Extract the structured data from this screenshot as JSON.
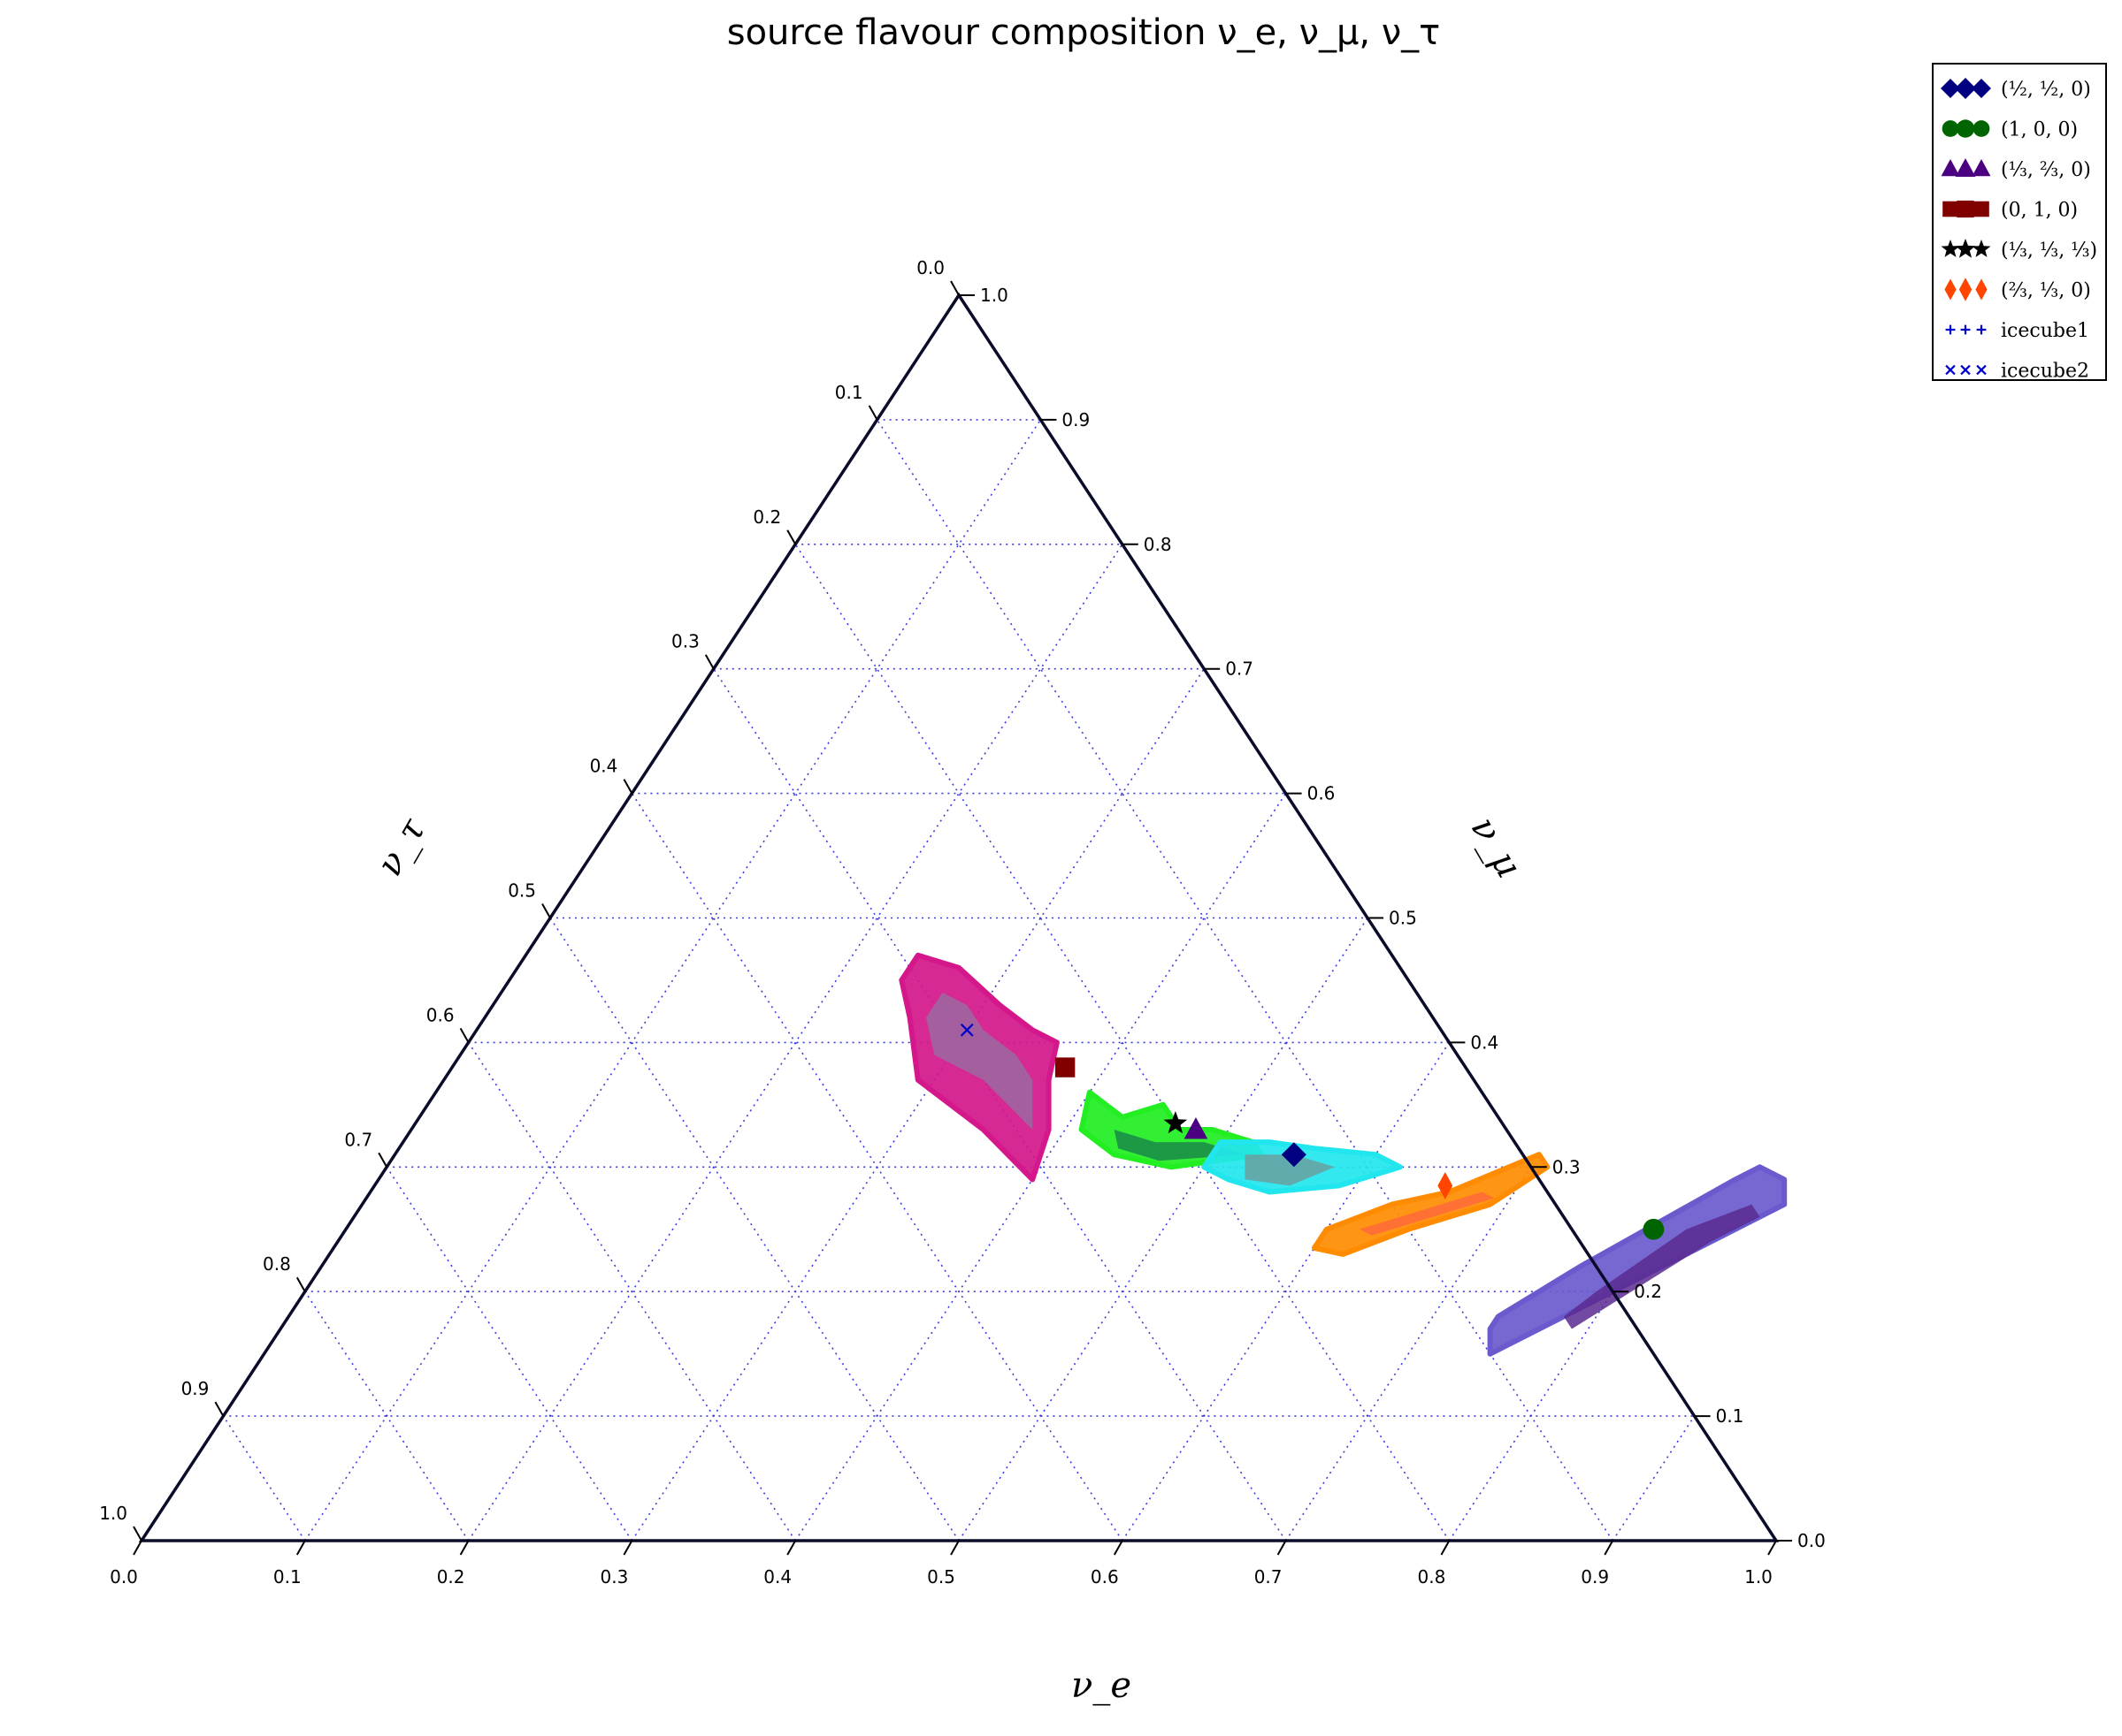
{
  "chart_data": {
    "type": "scatter",
    "subtype": "ternary",
    "title": "source flavour composition ν_e, ν_μ, ν_τ",
    "axes": {
      "bottom": {
        "label": "ν_e",
        "range": [
          0,
          1
        ]
      },
      "right": {
        "label": "ν_μ",
        "range": [
          0,
          1
        ]
      },
      "left": {
        "label": "ν_τ",
        "range": [
          0,
          1
        ]
      }
    },
    "ticks": [
      "0.0",
      "0.1",
      "0.2",
      "0.3",
      "0.4",
      "0.5",
      "0.6",
      "0.7",
      "0.8",
      "0.9",
      "1.0"
    ],
    "grid": true,
    "legend_position": "top-right",
    "colors": {
      "axis": "#0b0b2a",
      "grid": "#3b3bdc",
      "magenta_region": "#d4178a",
      "green_region": "#22ee22",
      "cyan_region": "#22e6ee",
      "orange_region": "#ff8c00",
      "slate_region": "#6a5acd"
    },
    "regions": [
      {
        "name": "magenta",
        "color": "#d4178a",
        "inner": "#9b6aa0",
        "outer": [
          [
            0.24,
            0.47
          ],
          [
            0.27,
            0.46
          ],
          [
            0.31,
            0.43
          ],
          [
            0.34,
            0.41
          ],
          [
            0.36,
            0.4
          ],
          [
            0.37,
            0.37
          ],
          [
            0.39,
            0.33
          ],
          [
            0.4,
            0.29
          ],
          [
            0.35,
            0.33
          ],
          [
            0.29,
            0.37
          ],
          [
            0.26,
            0.42
          ],
          [
            0.24,
            0.45
          ]
        ],
        "inner_poly": [
          [
            0.27,
            0.44
          ],
          [
            0.29,
            0.43
          ],
          [
            0.31,
            0.41
          ],
          [
            0.34,
            0.39
          ],
          [
            0.36,
            0.37
          ],
          [
            0.38,
            0.33
          ],
          [
            0.33,
            0.37
          ],
          [
            0.29,
            0.39
          ],
          [
            0.27,
            0.42
          ]
        ]
      },
      {
        "name": "green",
        "color": "#22ee22",
        "inner": "#1a8a4a",
        "outer": [
          [
            0.4,
            0.36
          ],
          [
            0.43,
            0.34
          ],
          [
            0.45,
            0.35
          ],
          [
            0.47,
            0.33
          ],
          [
            0.49,
            0.33
          ],
          [
            0.52,
            0.32
          ],
          [
            0.53,
            0.31
          ],
          [
            0.48,
            0.3
          ],
          [
            0.44,
            0.31
          ],
          [
            0.41,
            0.33
          ]
        ],
        "inner_poly": [
          [
            0.43,
            0.33
          ],
          [
            0.46,
            0.32
          ],
          [
            0.49,
            0.32
          ],
          [
            0.52,
            0.31
          ],
          [
            0.47,
            0.305
          ],
          [
            0.44,
            0.315
          ]
        ]
      },
      {
        "name": "cyan",
        "color": "#22e6ee",
        "inner": "#6aa0a0",
        "outer": [
          [
            0.5,
            0.32
          ],
          [
            0.53,
            0.32
          ],
          [
            0.56,
            0.315
          ],
          [
            0.6,
            0.31
          ],
          [
            0.62,
            0.3
          ],
          [
            0.59,
            0.285
          ],
          [
            0.55,
            0.28
          ],
          [
            0.52,
            0.29
          ],
          [
            0.5,
            0.3
          ]
        ],
        "inner_poly": [
          [
            0.52,
            0.31
          ],
          [
            0.55,
            0.31
          ],
          [
            0.58,
            0.3
          ],
          [
            0.56,
            0.285
          ],
          [
            0.53,
            0.29
          ]
        ]
      },
      {
        "name": "orange",
        "color": "#ff8c00",
        "inner": "#ff6a3a",
        "outer": [
          [
            0.6,
            0.25
          ],
          [
            0.63,
            0.27
          ],
          [
            0.66,
            0.28
          ],
          [
            0.7,
            0.31
          ],
          [
            0.71,
            0.3
          ],
          [
            0.69,
            0.27
          ],
          [
            0.65,
            0.25
          ],
          [
            0.62,
            0.23
          ],
          [
            0.6,
            0.235
          ]
        ],
        "inner_poly": [
          [
            0.62,
            0.25
          ],
          [
            0.65,
            0.265
          ],
          [
            0.68,
            0.28
          ],
          [
            0.69,
            0.275
          ],
          [
            0.66,
            0.26
          ],
          [
            0.63,
            0.245
          ]
        ]
      },
      {
        "name": "slate",
        "color": "#6a5acd",
        "inner": "#5a2a90",
        "outer": [
          [
            0.74,
            0.17
          ],
          [
            0.75,
            0.15
          ],
          [
            0.87,
            0.27
          ],
          [
            0.86,
            0.29
          ],
          [
            0.84,
            0.3
          ],
          [
            0.83,
            0.29
          ],
          [
            0.77,
            0.22
          ],
          [
            0.74,
            0.18
          ]
        ],
        "inner_poly": [
          [
            0.78,
            0.18
          ],
          [
            0.79,
            0.17
          ],
          [
            0.84,
            0.24
          ],
          [
            0.86,
            0.26
          ],
          [
            0.85,
            0.27
          ],
          [
            0.82,
            0.25
          ],
          [
            0.79,
            0.2
          ]
        ]
      }
    ],
    "points": [
      {
        "series": "(½,½,0)",
        "marker": "diamond",
        "color": "#000080",
        "e": 0.55,
        "mu": 0.31
      },
      {
        "series": "(1,0,0)",
        "marker": "circle",
        "color": "#006400",
        "e": 0.8,
        "mu": 0.25
      },
      {
        "series": "(⅓,⅔,0)",
        "marker": "triangle",
        "color": "#4b0082",
        "e": 0.48,
        "mu": 0.33
      },
      {
        "series": "(0,1,0)",
        "marker": "square",
        "color": "#800000",
        "e": 0.375,
        "mu": 0.38
      },
      {
        "series": "(⅓,⅓,⅓)",
        "marker": "star",
        "color": "#000000",
        "e": 0.465,
        "mu": 0.335
      },
      {
        "series": "(⅔,⅓,0)",
        "marker": "thin_diamond",
        "color": "#ff4500",
        "e": 0.655,
        "mu": 0.285
      },
      {
        "series": "icecube2",
        "marker": "x",
        "color": "#0000cd",
        "e": 0.3,
        "mu": 0.41
      }
    ],
    "legend": [
      {
        "label": "(½, ½, 0)",
        "marker": "diamond",
        "color": "#000080"
      },
      {
        "label": "(1, 0, 0)",
        "marker": "circle",
        "color": "#006400"
      },
      {
        "label": "(⅓, ⅔, 0)",
        "marker": "triangle",
        "color": "#4b0082"
      },
      {
        "label": "(0, 1, 0)",
        "marker": "square",
        "color": "#800000"
      },
      {
        "label": "(⅓, ⅓, ⅓)",
        "marker": "star",
        "color": "#000000"
      },
      {
        "label": "(⅔, ⅓, 0)",
        "marker": "thin_diamond",
        "color": "#ff4500"
      },
      {
        "label": "icecube1",
        "marker": "plus",
        "color": "#0000cd"
      },
      {
        "label": "icecube2",
        "marker": "x",
        "color": "#0000cd"
      }
    ]
  }
}
